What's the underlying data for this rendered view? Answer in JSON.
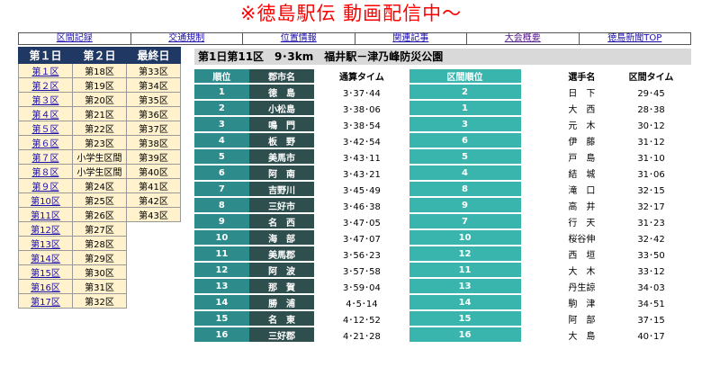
{
  "banner": "※徳島駅伝 動画配信中～",
  "nav": [
    "区間記録",
    "交通規制",
    "位置情報",
    "関連記事",
    "大会概要",
    "徳島新聞TOP"
  ],
  "sections": {
    "headers": [
      "第１日",
      "第２日",
      "最終日"
    ],
    "day1": [
      "第１区",
      "第２区",
      "第３区",
      "第４区",
      "第５区",
      "第６区",
      "第７区",
      "第８区",
      "第９区",
      "第10区",
      "第11区",
      "第12区",
      "第13区",
      "第14区",
      "第15区",
      "第16区",
      "第17区"
    ],
    "day2": [
      "第18区",
      "第19区",
      "第20区",
      "第21区",
      "第22区",
      "第23区",
      "小学生区間",
      "小学生区間",
      "第24区",
      "第25区",
      "第26区",
      "第27区",
      "第28区",
      "第29区",
      "第30区",
      "第31区",
      "第32区"
    ],
    "day3": [
      "第33区",
      "第34区",
      "第35区",
      "第36区",
      "第37区",
      "第38区",
      "第39区",
      "第40区",
      "第41区",
      "第42区",
      "第43区"
    ]
  },
  "course": "第1日第11区　9･3km　福井駅－津乃峰防災公園",
  "columns": {
    "rank": "順位",
    "team": "郡市名",
    "total": "通算タイム",
    "section_rank": "区間順位",
    "runner": "選手名",
    "section_time": "区間タイム"
  },
  "rows": [
    {
      "rank": "1",
      "team": "徳　島",
      "total": "3･37･44",
      "srank": "2",
      "runner": "日　下",
      "stime": "29･45"
    },
    {
      "rank": "2",
      "team": "小松島",
      "total": "3･38･06",
      "srank": "1",
      "runner": "大　西",
      "stime": "28･38"
    },
    {
      "rank": "3",
      "team": "鳴　門",
      "total": "3･38･54",
      "srank": "3",
      "runner": "元　木",
      "stime": "30･12"
    },
    {
      "rank": "4",
      "team": "板　野",
      "total": "3･42･54",
      "srank": "6",
      "runner": "伊　藤",
      "stime": "31･12"
    },
    {
      "rank": "5",
      "team": "美馬市",
      "total": "3･43･11",
      "srank": "5",
      "runner": "戸　島",
      "stime": "31･10"
    },
    {
      "rank": "6",
      "team": "阿　南",
      "total": "3･43･21",
      "srank": "4",
      "runner": "結　城",
      "stime": "31･06"
    },
    {
      "rank": "7",
      "team": "吉野川",
      "total": "3･45･49",
      "srank": "8",
      "runner": "滝　口",
      "stime": "32･15"
    },
    {
      "rank": "8",
      "team": "三好市",
      "total": "3･46･38",
      "srank": "9",
      "runner": "高　井",
      "stime": "32･17"
    },
    {
      "rank": "9",
      "team": "名　西",
      "total": "3･47･05",
      "srank": "7",
      "runner": "行　天",
      "stime": "31･23"
    },
    {
      "rank": "10",
      "team": "海　部",
      "total": "3･47･07",
      "srank": "10",
      "runner": "桜谷伸",
      "stime": "32･42"
    },
    {
      "rank": "11",
      "team": "美馬郡",
      "total": "3･56･23",
      "srank": "12",
      "runner": "西　垣",
      "stime": "33･50"
    },
    {
      "rank": "12",
      "team": "阿　波",
      "total": "3･57･58",
      "srank": "11",
      "runner": "大　木",
      "stime": "33･12"
    },
    {
      "rank": "13",
      "team": "那　賀",
      "total": "3･59･04",
      "srank": "13",
      "runner": "丹生諒",
      "stime": "34･03"
    },
    {
      "rank": "14",
      "team": "勝　浦",
      "total": "4･5･14",
      "srank": "14",
      "runner": "駒　津",
      "stime": "34･51"
    },
    {
      "rank": "15",
      "team": "名　東",
      "total": "4･12･52",
      "srank": "15",
      "runner": "阿　部",
      "stime": "37･15"
    },
    {
      "rank": "16",
      "team": "三好郡",
      "total": "4･21･28",
      "srank": "16",
      "runner": "大　島",
      "stime": "40･17"
    }
  ],
  "colors": {
    "banner": "#ff0000",
    "header_bg": "#1f3864",
    "section_bg": "#fff2cc",
    "rank_bg": "#2e8b8b",
    "team_bg": "#2f4f4f",
    "srank_bg": "#3ab5ad"
  }
}
